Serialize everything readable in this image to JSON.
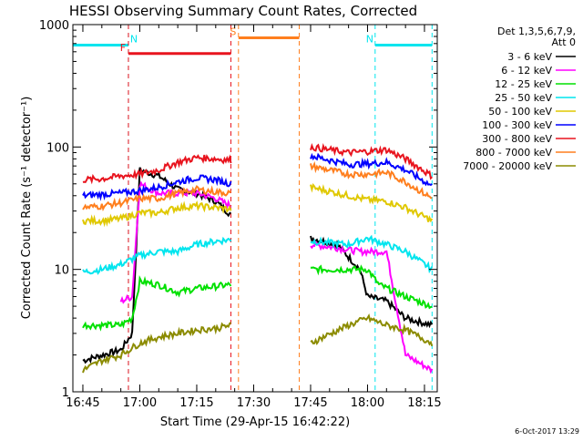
{
  "chart_data": {
    "type": "line",
    "title": "HESSI Observing Summary Count Rates, Corrected",
    "xlabel": "Start Time (29-Apr-15 16:42:22)",
    "ylabel": "Corrected Count Rate (s⁻¹ detector⁻¹)",
    "yscale": "log",
    "ylim": [
      1,
      1000
    ],
    "xlim_minutes_after_start": [
      0,
      96
    ],
    "x_ticks": [
      "16:45",
      "17:00",
      "17:15",
      "17:30",
      "17:45",
      "18:00",
      "18:15"
    ],
    "y_ticks": [
      "1",
      "10",
      "100",
      "1000"
    ],
    "footer": "6-Oct-2017 13:29",
    "legend": {
      "placement": "right",
      "header": [
        "Det 1,3,5,6,7,9,",
        "Att 0"
      ]
    },
    "flags": [
      {
        "label": "N",
        "color": "#00e5ee"
      },
      {
        "label": "F",
        "color": "#e8141e"
      },
      {
        "label": "S",
        "color": "#ff7f1e"
      }
    ],
    "flag_bars": [
      {
        "flag": "N",
        "start": "16:42:22",
        "end": "16:57",
        "y": 680
      },
      {
        "flag": "F",
        "start": "16:57",
        "end": "17:24",
        "y": 580
      },
      {
        "flag": "S",
        "start": "17:26",
        "end": "17:42",
        "y": 780
      },
      {
        "flag": "N",
        "start": "18:02",
        "end": "18:17",
        "y": 680
      }
    ],
    "data_gap": {
      "start": "17:24",
      "end": "17:45"
    },
    "series": [
      {
        "name": "3 - 6 keV",
        "color": "#000000",
        "values": [
          {
            "t": "16:45",
            "y": 1.8
          },
          {
            "t": "16:55",
            "y": 2.2
          },
          {
            "t": "16:58",
            "y": 3.0
          },
          {
            "t": "17:00",
            "y": 65
          },
          {
            "t": "17:05",
            "y": 58
          },
          {
            "t": "17:10",
            "y": 45
          },
          {
            "t": "17:15",
            "y": 42
          },
          {
            "t": "17:20",
            "y": 36
          },
          {
            "t": "17:24",
            "y": 28
          },
          {
            "t": "17:45",
            "y": 18
          },
          {
            "t": "17:52",
            "y": 16
          },
          {
            "t": "17:58",
            "y": 10
          },
          {
            "t": "18:00",
            "y": 6
          },
          {
            "t": "18:05",
            "y": 5.5
          },
          {
            "t": "18:10",
            "y": 4.0
          },
          {
            "t": "18:17",
            "y": 3.5
          }
        ]
      },
      {
        "name": "6 - 12 keV",
        "color": "#ff00ff",
        "values": [
          {
            "t": "16:55",
            "y": 5.5
          },
          {
            "t": "16:58",
            "y": 6
          },
          {
            "t": "17:00",
            "y": 50
          },
          {
            "t": "17:05",
            "y": 42
          },
          {
            "t": "17:10",
            "y": 42
          },
          {
            "t": "17:15",
            "y": 42
          },
          {
            "t": "17:20",
            "y": 38
          },
          {
            "t": "17:24",
            "y": 33
          },
          {
            "t": "17:45",
            "y": 16
          },
          {
            "t": "17:52",
            "y": 15
          },
          {
            "t": "17:58",
            "y": 14
          },
          {
            "t": "18:05",
            "y": 14
          },
          {
            "t": "18:10",
            "y": 2
          },
          {
            "t": "18:17",
            "y": 1.5
          }
        ]
      },
      {
        "name": "12 - 25 keV",
        "color": "#00e000",
        "values": [
          {
            "t": "16:45",
            "y": 3.5
          },
          {
            "t": "16:55",
            "y": 3.5
          },
          {
            "t": "16:58",
            "y": 4
          },
          {
            "t": "17:00",
            "y": 8
          },
          {
            "t": "17:05",
            "y": 7.5
          },
          {
            "t": "17:10",
            "y": 6.5
          },
          {
            "t": "17:15",
            "y": 7
          },
          {
            "t": "17:24",
            "y": 7.5
          },
          {
            "t": "17:45",
            "y": 10
          },
          {
            "t": "17:55",
            "y": 10
          },
          {
            "t": "18:00",
            "y": 10
          },
          {
            "t": "18:03",
            "y": 7.5
          },
          {
            "t": "18:10",
            "y": 6
          },
          {
            "t": "18:17",
            "y": 5
          }
        ]
      },
      {
        "name": "25 - 50 keV",
        "color": "#00e5ee",
        "values": [
          {
            "t": "16:45",
            "y": 9.5
          },
          {
            "t": "16:50",
            "y": 10
          },
          {
            "t": "16:55",
            "y": 11
          },
          {
            "t": "17:00",
            "y": 13
          },
          {
            "t": "17:05",
            "y": 14
          },
          {
            "t": "17:10",
            "y": 14
          },
          {
            "t": "17:15",
            "y": 16
          },
          {
            "t": "17:20",
            "y": 17
          },
          {
            "t": "17:24",
            "y": 17.5
          },
          {
            "t": "17:45",
            "y": 17
          },
          {
            "t": "17:55",
            "y": 16
          },
          {
            "t": "18:00",
            "y": 18
          },
          {
            "t": "18:05",
            "y": 16
          },
          {
            "t": "18:10",
            "y": 14
          },
          {
            "t": "18:17",
            "y": 10
          }
        ]
      },
      {
        "name": "50 - 100 keV",
        "color": "#e0c800",
        "values": [
          {
            "t": "16:45",
            "y": 25
          },
          {
            "t": "16:50",
            "y": 25
          },
          {
            "t": "16:55",
            "y": 26
          },
          {
            "t": "17:00",
            "y": 29
          },
          {
            "t": "17:05",
            "y": 29
          },
          {
            "t": "17:10",
            "y": 32
          },
          {
            "t": "17:15",
            "y": 33
          },
          {
            "t": "17:20",
            "y": 32
          },
          {
            "t": "17:24",
            "y": 31
          },
          {
            "t": "17:45",
            "y": 47
          },
          {
            "t": "17:55",
            "y": 40
          },
          {
            "t": "18:00",
            "y": 37
          },
          {
            "t": "18:05",
            "y": 36
          },
          {
            "t": "18:10",
            "y": 32
          },
          {
            "t": "18:17",
            "y": 25
          }
        ]
      },
      {
        "name": "100 - 300 keV",
        "color": "#0000ff",
        "values": [
          {
            "t": "16:45",
            "y": 40
          },
          {
            "t": "16:50",
            "y": 41
          },
          {
            "t": "16:55",
            "y": 42
          },
          {
            "t": "17:00",
            "y": 44
          },
          {
            "t": "17:05",
            "y": 47
          },
          {
            "t": "17:10",
            "y": 52
          },
          {
            "t": "17:15",
            "y": 56
          },
          {
            "t": "17:20",
            "y": 54
          },
          {
            "t": "17:24",
            "y": 50
          },
          {
            "t": "17:45",
            "y": 85
          },
          {
            "t": "17:55",
            "y": 72
          },
          {
            "t": "18:00",
            "y": 73
          },
          {
            "t": "18:05",
            "y": 75
          },
          {
            "t": "18:10",
            "y": 65
          },
          {
            "t": "18:17",
            "y": 48
          }
        ]
      },
      {
        "name": "300 - 800 keV",
        "color": "#e8141e",
        "values": [
          {
            "t": "16:45",
            "y": 54
          },
          {
            "t": "16:50",
            "y": 55
          },
          {
            "t": "16:55",
            "y": 58
          },
          {
            "t": "17:00",
            "y": 60
          },
          {
            "t": "17:05",
            "y": 65
          },
          {
            "t": "17:10",
            "y": 75
          },
          {
            "t": "17:15",
            "y": 82
          },
          {
            "t": "17:20",
            "y": 80
          },
          {
            "t": "17:24",
            "y": 78
          },
          {
            "t": "17:45",
            "y": 100
          },
          {
            "t": "17:55",
            "y": 90
          },
          {
            "t": "18:00",
            "y": 92
          },
          {
            "t": "18:05",
            "y": 95
          },
          {
            "t": "18:10",
            "y": 80
          },
          {
            "t": "18:17",
            "y": 58
          }
        ]
      },
      {
        "name": "800 - 7000 keV",
        "color": "#ff7f1e",
        "values": [
          {
            "t": "16:45",
            "y": 32
          },
          {
            "t": "16:50",
            "y": 33
          },
          {
            "t": "16:55",
            "y": 35
          },
          {
            "t": "17:00",
            "y": 38
          },
          {
            "t": "17:05",
            "y": 38
          },
          {
            "t": "17:10",
            "y": 42
          },
          {
            "t": "17:15",
            "y": 45
          },
          {
            "t": "17:20",
            "y": 43
          },
          {
            "t": "17:24",
            "y": 42
          },
          {
            "t": "17:45",
            "y": 70
          },
          {
            "t": "17:55",
            "y": 60
          },
          {
            "t": "18:00",
            "y": 60
          },
          {
            "t": "18:05",
            "y": 62
          },
          {
            "t": "18:10",
            "y": 52
          },
          {
            "t": "18:17",
            "y": 38
          }
        ]
      },
      {
        "name": "7000 - 20000 keV",
        "color": "#8b8b00",
        "values": [
          {
            "t": "16:45",
            "y": 1.5
          },
          {
            "t": "16:50",
            "y": 1.8
          },
          {
            "t": "16:55",
            "y": 2.0
          },
          {
            "t": "17:00",
            "y": 2.5
          },
          {
            "t": "17:05",
            "y": 2.8
          },
          {
            "t": "17:10",
            "y": 3.0
          },
          {
            "t": "17:15",
            "y": 3.2
          },
          {
            "t": "17:20",
            "y": 3.3
          },
          {
            "t": "17:24",
            "y": 3.5
          },
          {
            "t": "17:45",
            "y": 2.5
          },
          {
            "t": "17:55",
            "y": 3.5
          },
          {
            "t": "18:00",
            "y": 4
          },
          {
            "t": "18:05",
            "y": 3.5
          },
          {
            "t": "18:10",
            "y": 3.2
          },
          {
            "t": "18:17",
            "y": 2.5
          }
        ]
      }
    ]
  }
}
